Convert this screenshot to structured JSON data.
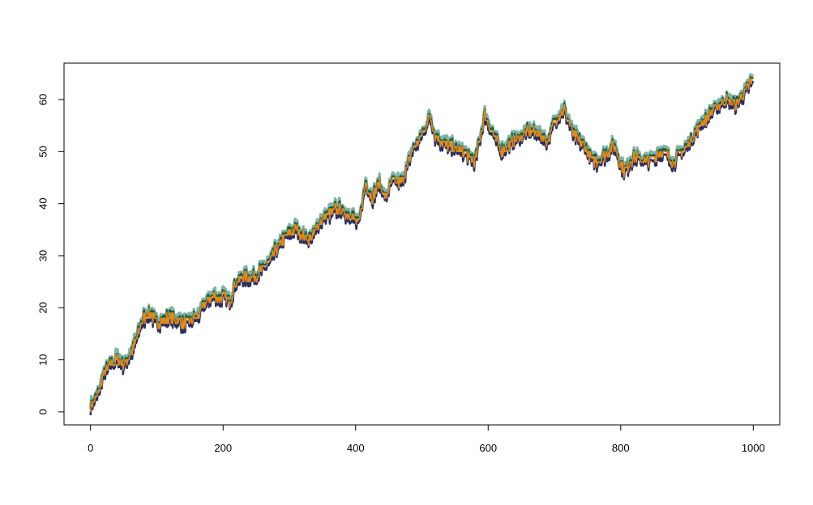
{
  "chart_data": {
    "type": "line",
    "title": "",
    "xlabel": "",
    "ylabel": "",
    "xlim": [
      -40,
      1040
    ],
    "ylim": [
      -2.5,
      67
    ],
    "x_ticks": [
      0,
      200,
      400,
      600,
      800,
      1000
    ],
    "x_tick_labels": [
      "0",
      "200",
      "400",
      "600",
      "800",
      "1000"
    ],
    "y_ticks": [
      0,
      10,
      20,
      30,
      40,
      50,
      60
    ],
    "y_tick_labels": [
      "0",
      "10",
      "20",
      "30",
      "40",
      "50",
      "60"
    ],
    "grid": false,
    "legend": "none",
    "series": [
      {
        "color": "#7fb4a6",
        "width": 3.2,
        "offset": 0.8
      },
      {
        "color": "#1d5c3a",
        "width": 2.0,
        "offset": 0.3
      },
      {
        "color": "#2b2f5e",
        "width": 2.4,
        "offset": -0.6
      },
      {
        "color": "#e08a1e",
        "width": 1.6,
        "offset": 0.0
      }
    ],
    "trend_points": [
      [
        0,
        1
      ],
      [
        10,
        3
      ],
      [
        20,
        7
      ],
      [
        30,
        9
      ],
      [
        40,
        10
      ],
      [
        50,
        9
      ],
      [
        60,
        11
      ],
      [
        70,
        14
      ],
      [
        80,
        18
      ],
      [
        90,
        19
      ],
      [
        100,
        17
      ],
      [
        120,
        18
      ],
      [
        140,
        17
      ],
      [
        160,
        18
      ],
      [
        180,
        22
      ],
      [
        200,
        22
      ],
      [
        210,
        21
      ],
      [
        220,
        25
      ],
      [
        230,
        26
      ],
      [
        250,
        26
      ],
      [
        270,
        29
      ],
      [
        290,
        33
      ],
      [
        310,
        35
      ],
      [
        330,
        33
      ],
      [
        350,
        37
      ],
      [
        370,
        39
      ],
      [
        390,
        38
      ],
      [
        405,
        36
      ],
      [
        415,
        44
      ],
      [
        425,
        41
      ],
      [
        435,
        44
      ],
      [
        445,
        41
      ],
      [
        455,
        44
      ],
      [
        470,
        44
      ],
      [
        485,
        50
      ],
      [
        500,
        53
      ],
      [
        512,
        57
      ],
      [
        520,
        53
      ],
      [
        540,
        51
      ],
      [
        560,
        50
      ],
      [
        580,
        48
      ],
      [
        595,
        57
      ],
      [
        605,
        54
      ],
      [
        620,
        50
      ],
      [
        640,
        52
      ],
      [
        665,
        54
      ],
      [
        690,
        52
      ],
      [
        700,
        56
      ],
      [
        715,
        58
      ],
      [
        730,
        53
      ],
      [
        745,
        51
      ],
      [
        760,
        48
      ],
      [
        775,
        49
      ],
      [
        790,
        51
      ],
      [
        805,
        46
      ],
      [
        820,
        49
      ],
      [
        840,
        48
      ],
      [
        860,
        50
      ],
      [
        880,
        48
      ],
      [
        900,
        51
      ],
      [
        920,
        55
      ],
      [
        940,
        58
      ],
      [
        960,
        60
      ],
      [
        975,
        59
      ],
      [
        985,
        61
      ],
      [
        1000,
        64
      ]
    ]
  }
}
